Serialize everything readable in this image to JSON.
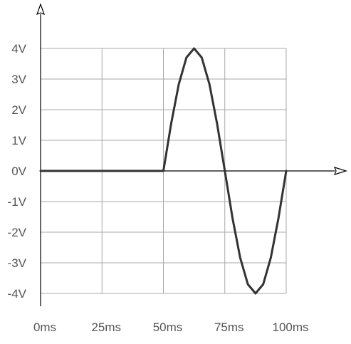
{
  "chart_data": {
    "type": "line",
    "x_ticks": [
      "0ms",
      "25ms",
      "50ms",
      "75ms",
      "100ms"
    ],
    "x_tick_values": [
      0,
      25,
      50,
      75,
      100
    ],
    "y_ticks": [
      "4V",
      "3V",
      "2V",
      "1V",
      "0V",
      "-1V",
      "-2V",
      "-3V",
      "-4V"
    ],
    "y_tick_values": [
      4,
      3,
      2,
      1,
      0,
      -1,
      -2,
      -3,
      -4
    ],
    "xlim": [
      0,
      100
    ],
    "ylim": [
      -4,
      4
    ],
    "x_unit": "ms",
    "y_unit": "V",
    "grid": true,
    "series": [
      {
        "color": "#333333",
        "description_shape": "flat at 0V from 0ms to 50ms, then one full sine cycle of amplitude 4V from 50ms to 100ms",
        "x": [
          0,
          50,
          53.125,
          56.25,
          59.375,
          62.5,
          65.625,
          68.75,
          71.875,
          75,
          78.125,
          81.25,
          84.375,
          87.5,
          90.625,
          93.75,
          96.875,
          100
        ],
        "y": [
          0,
          0,
          1.53,
          2.83,
          3.7,
          4,
          3.7,
          2.83,
          1.53,
          0,
          -1.53,
          -2.83,
          -3.7,
          -4,
          -3.7,
          -2.83,
          -1.53,
          0
        ]
      }
    ]
  }
}
